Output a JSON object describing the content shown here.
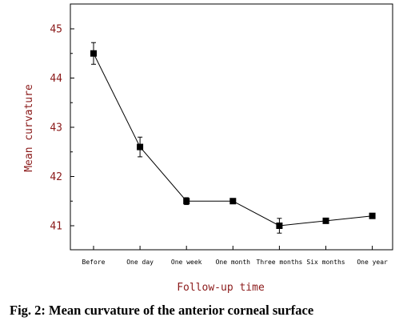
{
  "caption": "Fig. 2: Mean curvature of the anterior corneal surface",
  "chart_data": {
    "type": "line",
    "title": "",
    "xlabel": "Follow-up time",
    "ylabel": "Mean curvature",
    "categories": [
      "Before",
      "One day",
      "One week",
      "One month",
      "Three months",
      "Six months",
      "One year"
    ],
    "values": [
      44.5,
      42.6,
      41.5,
      41.5,
      41.0,
      41.1,
      41.2
    ],
    "errors": [
      0.22,
      0.2,
      0.07,
      0.0,
      0.15,
      0.0,
      0.0
    ],
    "ylim": [
      40.5,
      45.5
    ],
    "yticks": [
      41,
      42,
      43,
      44,
      45
    ],
    "grid": false,
    "colors": {
      "line": "#000000",
      "marker": "#000000",
      "tick_text": "#8b1a1a"
    }
  }
}
